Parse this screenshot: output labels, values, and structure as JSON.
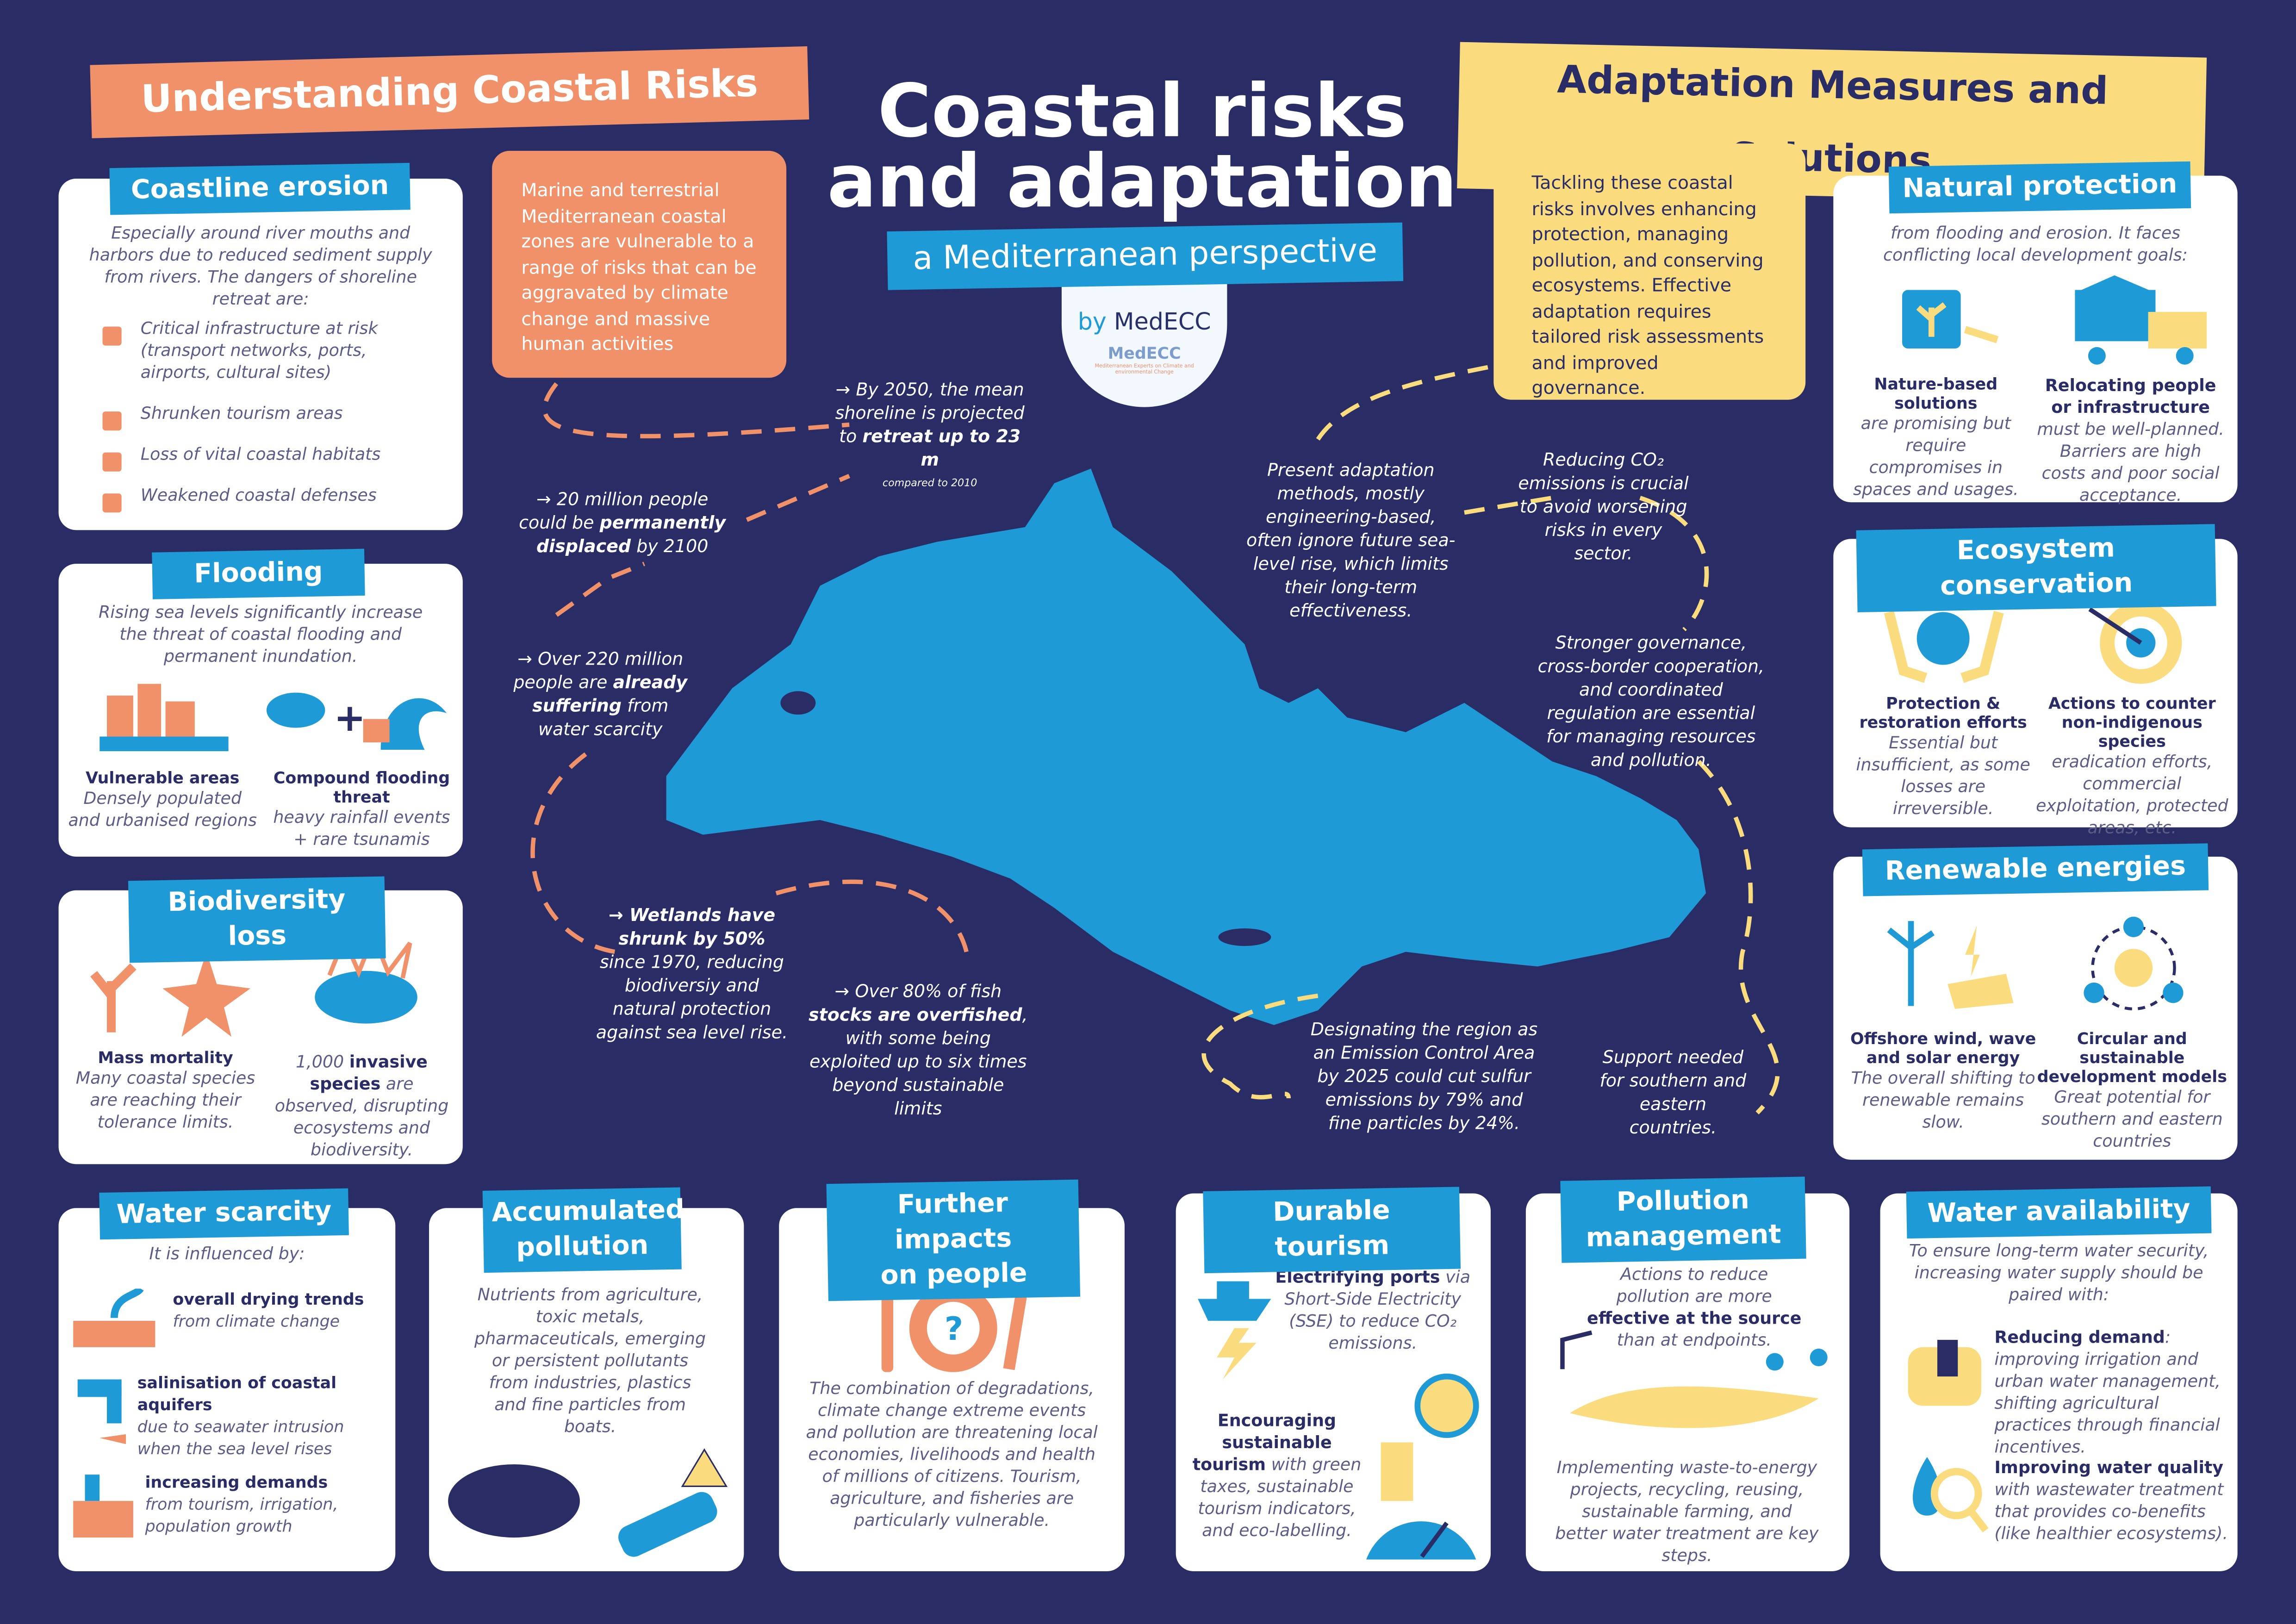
{
  "colors": {
    "background": "#2a2c66",
    "orange": "#f0916a",
    "yellow": "#fadc7e",
    "blue": "#1e9ad6",
    "map": "#1e9ad6",
    "white": "#ffffff"
  },
  "title": {
    "line1": "Coastal risks",
    "line2": "and adaptation",
    "subtitle": "a Mediterranean perspective",
    "by_prefix": "by",
    "by_name": "MedECC",
    "logo_text": "MedECC",
    "logo_tagline": "Mediterranean Experts on Climate and environmental Change"
  },
  "left_header": "Understanding Coastal Risks",
  "right_header": "Adaptation Measures and Solutions",
  "intro_orange": "Marine and terrestrial Mediterranean coastal zones are vulnerable to a range of risks that can be aggravated by climate change and massive human activities",
  "intro_yellow": "Tackling these coastal risks involves enhancing protection, managing pollution, and conserving ecosystems. Effective adaptation requires tailored risk assessments and improved governance.",
  "erosion": {
    "title": "Coastline erosion",
    "text": "Especially around river mouths and harbors due to reduced sediment supply from rivers. The dangers of shoreline retreat are:",
    "items": [
      "Critical infrastructure at risk (transport networks, ports, airports, cultural sites)",
      "Shrunken tourism areas",
      "Loss of vital coastal habitats",
      "Weakened coastal defenses"
    ]
  },
  "flooding": {
    "title": "Flooding",
    "text": "Rising sea levels significantly increase the threat of coastal flooding and permanent inundation.",
    "a_label": "Vulnerable areas",
    "a_text": "Densely populated and urbanised regions",
    "b_label": "Compound flooding threat",
    "b_text": "heavy rainfall events + rare tsunamis"
  },
  "biodiversity": {
    "title": "Biodiversity loss",
    "a_label": "Mass mortality",
    "a_text": "Many coastal species are reaching their tolerance limits.",
    "b_pre": "1,000",
    "b_label": "invasive species",
    "b_text": "are observed, disrupting ecosystems and biodiversity."
  },
  "map_facts": {
    "f1": {
      "pre": "→ By 2050, the mean shoreline is projected to",
      "bold": "retreat up to 23 m",
      "note": "compared to 2010"
    },
    "f2": {
      "pre": "→ 20 million people could be",
      "bold": "permanently displaced",
      "post": "by 2100"
    },
    "f3": {
      "pre": "→ Over 220 million people are",
      "bold": "already suffering",
      "post": "from water scarcity"
    },
    "f4": {
      "bold": "→ Wetlands have shrunk by 50%",
      "post": "since 1970, reducing biodiversiy and natural protection against sea level rise."
    },
    "f5": {
      "pre": "→ Over 80% of fish",
      "bold": "stocks are overfished",
      "post": ", with some being exploited up to six times beyond sustainable limits"
    },
    "f6": "Present adaptation methods, mostly engineering-based, often ignore future sea-level rise, which limits their long-term effectiveness.",
    "f7": "Reducing CO₂ emissions is crucial to avoid worsening risks in every sector.",
    "f8": "Stronger governance, cross-border cooperation, and coordinated regulation are essential for managing resources and pollution.",
    "f9": "Designating the region as an Emission Control Area by 2025 could cut sulfur emissions by 79% and fine particles by 24%.",
    "f10": "Support needed for southern and eastern countries."
  },
  "natural": {
    "title": "Natural protection",
    "text": "from flooding and erosion. It faces conflicting local development goals:",
    "a_label": "Nature-based solutions",
    "a_text": "are promising but require compromises in spaces and usages.",
    "b_label": "Relocating people or infrastructure",
    "b_text": "must be well-planned. Barriers are high costs and poor social acceptance."
  },
  "ecosystem": {
    "title": "Ecosystem conservation",
    "a_label": "Protection & restoration efforts",
    "a_text": "Essential but insufficient, as some losses are irreversible.",
    "b_label": "Actions to counter non-indigenous species",
    "b_text": "eradication efforts, commercial exploitation, protected areas, etc."
  },
  "renewable": {
    "title": "Renewable energies",
    "a_label": "Offshore wind, wave and solar energy",
    "a_text": "The overall shifting to renewable remains slow.",
    "b_label": "Circular and sustainable development models",
    "b_text": "Great potential for southern and eastern countries"
  },
  "water_scarcity": {
    "title": "Water scarcity",
    "text": "It is influenced by:",
    "items": [
      {
        "label": "overall drying trends",
        "text": "from climate change"
      },
      {
        "label": "salinisation of coastal aquifers",
        "text": "due to seawater intrusion when the sea level rises"
      },
      {
        "label": "increasing demands",
        "text": "from tourism, irrigation, population growth"
      }
    ]
  },
  "pollution": {
    "title_1": "Accumulated",
    "title_2": "pollution",
    "text": "Nutrients from agriculture, toxic metals, pharmaceuticals, emerging or persistent pollutants from industries, plastics and fine particles from boats."
  },
  "people": {
    "title_1": "Further impacts",
    "title_2": "on people",
    "text": "The combination of degradations, climate change extreme events and pollution are threatening local economies, livelihoods and health of millions of citizens. Tourism, agriculture, and fisheries are particularly vulnerable."
  },
  "tourism": {
    "title": "Durable tourism",
    "a_label": "Electrifying ports",
    "a_text": "via Short-Side Electricity (SSE) to reduce CO₂ emissions.",
    "b_label": "Encouraging sustainable tourism",
    "b_text": "with green taxes, sustainable tourism indicators, and eco-labelling."
  },
  "pollution_mgmt": {
    "title_1": "Pollution",
    "title_2": "management",
    "pre": "Actions to reduce pollution are more",
    "bold": "effective at the source",
    "post": "than at endpoints.",
    "text2": "Implementing waste-to-energy projects, recycling, reusing, sustainable farming, and better water treatment are key steps."
  },
  "water_avail": {
    "title": "Water availability",
    "text": "To ensure long-term water security, increasing water supply should be paired with:",
    "a_label": "Reducing demand",
    "a_text": ": improving irrigation and urban water management, shifting agricultural practices through financial incentives.",
    "b_label": "Improving water quality",
    "b_text": "with wastewater treatment that provides co-benefits (like healthier ecosystems)."
  }
}
